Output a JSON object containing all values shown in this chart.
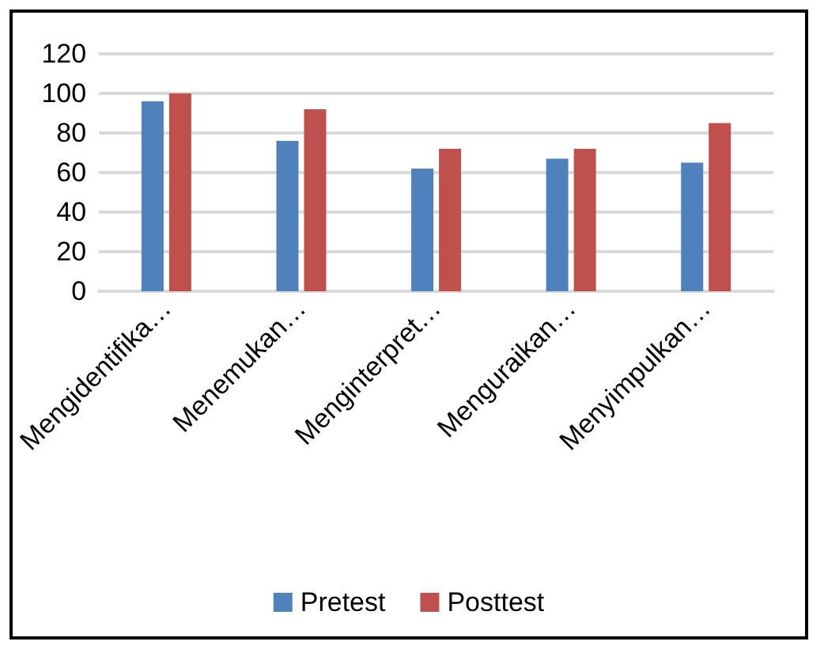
{
  "chart_data": {
    "type": "bar",
    "categories": [
      "Mengidentifika…",
      "Menemukan…",
      "Menginterpret…",
      "Menguraikan…",
      "Menyimpulkan…"
    ],
    "series": [
      {
        "name": "Pretest",
        "color": "#4f81bd",
        "values": [
          96,
          76,
          62,
          67,
          65
        ]
      },
      {
        "name": "Posttest",
        "color": "#c0504d",
        "values": [
          100,
          92,
          72,
          72,
          85
        ]
      }
    ],
    "ylim": [
      0,
      120
    ],
    "yticks": [
      0,
      20,
      40,
      60,
      80,
      100,
      120
    ],
    "grid": "y",
    "legend": "bottom"
  }
}
